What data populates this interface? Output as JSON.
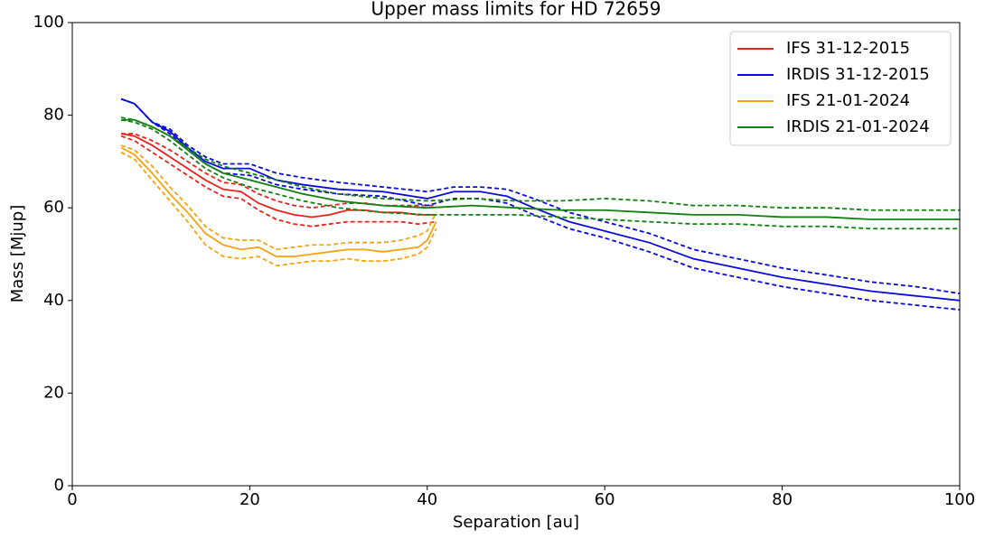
{
  "chart_data": {
    "type": "line",
    "title": "Upper mass limits for HD 72659",
    "x_label": "Separation [au]",
    "y_label": "Mass [Mjup]",
    "xlim": [
      0,
      100
    ],
    "ylim": [
      0,
      100
    ],
    "xticks": [
      0,
      20,
      40,
      60,
      80,
      100
    ],
    "yticks": [
      0,
      20,
      40,
      60,
      80,
      100
    ],
    "legend": "upper right",
    "series": [
      {
        "name": "IFS 31-12-2015",
        "color": "#e8231a",
        "x": [
          5.5,
          7,
          9,
          11,
          13,
          15,
          17,
          19,
          21,
          23,
          25,
          27,
          29,
          31,
          33,
          35,
          37,
          39,
          41
        ],
        "values": [
          76,
          75.5,
          73.5,
          71,
          68.5,
          66,
          64,
          63.5,
          61,
          59.5,
          58.5,
          58,
          58.5,
          59.5,
          59.5,
          59,
          59,
          58.5,
          58.5
        ],
        "upper": [
          76,
          76,
          74.5,
          72.5,
          70,
          67.5,
          65.5,
          65,
          63,
          61.5,
          60.5,
          60,
          60.5,
          61,
          61,
          60.5,
          60.5,
          60.5,
          60.5
        ],
        "lower": [
          75.5,
          74.5,
          72,
          69.5,
          67,
          64.5,
          62.5,
          62,
          59.5,
          57.5,
          56.5,
          56,
          56.5,
          57,
          57,
          57,
          57,
          56.5,
          57
        ]
      },
      {
        "name": "IRDIS 31-12-2015",
        "color": "#0a0adc",
        "x": [
          5.5,
          7,
          9,
          11,
          13,
          15,
          17,
          20,
          23,
          26,
          30,
          35,
          40,
          43,
          46,
          49,
          52,
          56,
          60,
          65,
          70,
          75,
          80,
          85,
          90,
          95,
          100
        ],
        "values": [
          83.5,
          82.5,
          78.5,
          76.5,
          73,
          70,
          68.5,
          68.5,
          66,
          65,
          64,
          63.5,
          62,
          63.5,
          63.5,
          62.5,
          60,
          57,
          55,
          52.5,
          49,
          47,
          45,
          43.5,
          42,
          41,
          40
        ],
        "upper": [
          83.5,
          82.5,
          78.5,
          77,
          73.5,
          71,
          69.5,
          69.5,
          67.5,
          66.5,
          65.5,
          64.5,
          63.5,
          64.5,
          64.5,
          64,
          62,
          59,
          57,
          54.5,
          51,
          49,
          47,
          45.5,
          44,
          43,
          41.5
        ],
        "lower": [
          83.5,
          82.5,
          78.5,
          76,
          72.5,
          69.5,
          67.5,
          67,
          65,
          64,
          63,
          62.5,
          60.5,
          62,
          62,
          61,
          58.5,
          55.5,
          53.5,
          50.5,
          47,
          45,
          43,
          41.5,
          40,
          39,
          38
        ]
      },
      {
        "name": "IFS 21-01-2024",
        "color": "#f5a30f",
        "x": [
          5.5,
          7,
          9,
          11,
          13,
          15,
          17,
          19,
          21,
          23,
          25,
          27,
          29,
          31,
          33,
          35,
          37,
          39,
          40,
          41
        ],
        "values": [
          73,
          71.5,
          67.5,
          63,
          59,
          54.5,
          52,
          51,
          51.5,
          49.5,
          49.5,
          50,
          50.5,
          51,
          51,
          50.5,
          51,
          51.5,
          53,
          57
        ],
        "upper": [
          73.5,
          72.5,
          69,
          64.5,
          60.5,
          56,
          53.5,
          53,
          53,
          51,
          51.5,
          52,
          52,
          52.5,
          52.5,
          52.5,
          53,
          54,
          55,
          59
        ],
        "lower": [
          72,
          70.5,
          66,
          61.5,
          57,
          52,
          49.5,
          49,
          49.5,
          47.5,
          48,
          48.5,
          48.5,
          49,
          48.5,
          48.5,
          49,
          50,
          51.5,
          55.5
        ]
      },
      {
        "name": "IRDIS 21-01-2024",
        "color": "#118011",
        "x": [
          5.5,
          7,
          9,
          11,
          13,
          15,
          17,
          20,
          23,
          26,
          30,
          35,
          40,
          45,
          50,
          55,
          60,
          65,
          70,
          75,
          80,
          85,
          90,
          95,
          100
        ],
        "values": [
          79,
          79,
          77.5,
          75.5,
          72.5,
          69.5,
          67.5,
          66,
          64.5,
          63,
          61.5,
          60.5,
          60,
          60.5,
          60,
          59.5,
          59.5,
          59,
          58.5,
          58.5,
          58,
          58,
          57.5,
          57.5,
          57.5
        ],
        "upper": [
          79.5,
          79,
          77.5,
          75.5,
          73,
          70.5,
          69,
          67.5,
          66,
          64.5,
          63,
          62,
          61.5,
          62,
          61.5,
          61.5,
          62,
          61.5,
          60.5,
          60.5,
          60,
          60,
          59.5,
          59.5,
          59.5
        ],
        "lower": [
          79,
          78.5,
          77,
          74.5,
          71.5,
          68.5,
          66.5,
          64.5,
          63,
          61.5,
          60,
          59,
          58.5,
          58.5,
          58.5,
          58,
          57.5,
          57,
          56.5,
          56.5,
          56,
          56,
          55.5,
          55.5,
          55.5
        ]
      }
    ]
  }
}
